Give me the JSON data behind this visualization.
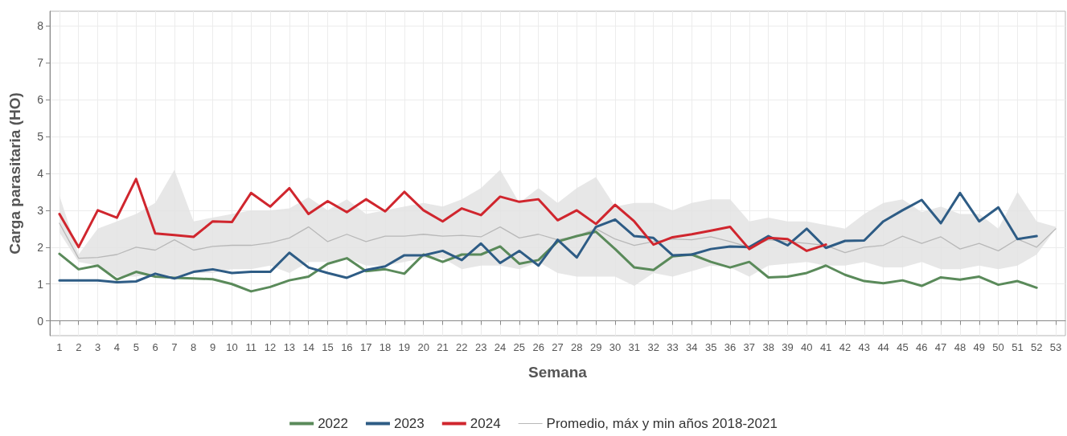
{
  "chart_data": {
    "type": "line",
    "xlabel": "Semana",
    "ylabel": "Carga parasitaria (HO)",
    "x": [
      1,
      2,
      3,
      4,
      5,
      6,
      7,
      8,
      9,
      10,
      11,
      12,
      13,
      14,
      15,
      16,
      17,
      18,
      19,
      20,
      21,
      22,
      23,
      24,
      25,
      26,
      27,
      28,
      29,
      30,
      31,
      32,
      33,
      34,
      35,
      36,
      37,
      38,
      39,
      40,
      41,
      42,
      43,
      44,
      45,
      46,
      47,
      48,
      49,
      50,
      51,
      52,
      53
    ],
    "series": [
      {
        "name": "2022",
        "color": "#5a8a5a",
        "values": [
          1.82,
          1.4,
          1.5,
          1.12,
          1.33,
          1.2,
          1.17,
          1.15,
          1.13,
          1.0,
          0.8,
          0.92,
          1.1,
          1.2,
          1.55,
          1.7,
          1.35,
          1.4,
          1.28,
          1.8,
          1.6,
          1.8,
          1.8,
          2.02,
          1.55,
          1.65,
          2.15,
          2.3,
          2.42,
          1.95,
          1.45,
          1.38,
          1.75,
          1.8,
          1.6,
          1.45,
          1.6,
          1.18,
          1.2,
          1.3,
          1.5,
          1.25,
          1.08,
          1.02,
          1.1,
          0.95,
          1.18,
          1.12,
          1.2,
          0.98,
          1.08,
          0.9,
          null
        ]
      },
      {
        "name": "2023",
        "color": "#2e5c85",
        "values": [
          1.1,
          1.1,
          1.1,
          1.05,
          1.07,
          1.28,
          1.15,
          1.33,
          1.4,
          1.3,
          1.33,
          1.33,
          1.85,
          1.45,
          1.3,
          1.17,
          1.38,
          1.48,
          1.78,
          1.78,
          1.9,
          1.65,
          2.1,
          1.57,
          1.9,
          1.5,
          2.2,
          1.72,
          2.55,
          2.75,
          2.3,
          2.25,
          1.78,
          1.8,
          1.95,
          2.02,
          2.0,
          2.3,
          2.05,
          2.5,
          1.98,
          2.17,
          2.18,
          2.7,
          3.0,
          3.28,
          2.65,
          3.47,
          2.7,
          3.08,
          2.22,
          2.3,
          null
        ]
      },
      {
        "name": "2024",
        "color": "#d0262e",
        "values": [
          2.9,
          2.0,
          3.0,
          2.8,
          3.85,
          2.37,
          2.33,
          2.28,
          2.7,
          2.68,
          3.47,
          3.1,
          3.6,
          2.9,
          3.25,
          2.95,
          3.3,
          2.97,
          3.5,
          3.0,
          2.7,
          3.05,
          2.87,
          3.37,
          3.23,
          3.3,
          2.73,
          3.0,
          2.63,
          3.15,
          2.7,
          2.07,
          2.27,
          2.35,
          2.45,
          2.55,
          1.95,
          2.25,
          2.22,
          1.9,
          2.07,
          null,
          null,
          null,
          null,
          null,
          null,
          null,
          null,
          null,
          null,
          null,
          null
        ]
      },
      {
        "name": "Promedio, máx y min años 2018-2021",
        "color": "#b8b8b8",
        "values": [
          2.65,
          1.7,
          1.72,
          1.8,
          2.0,
          1.92,
          2.2,
          1.92,
          2.02,
          2.05,
          2.05,
          2.12,
          2.25,
          2.55,
          2.15,
          2.35,
          2.15,
          2.3,
          2.3,
          2.35,
          2.3,
          2.32,
          2.28,
          2.55,
          2.25,
          2.35,
          2.2,
          2.3,
          2.5,
          2.22,
          2.05,
          2.15,
          2.22,
          2.2,
          2.28,
          2.15,
          2.0,
          2.2,
          2.15,
          2.1,
          2.05,
          1.85,
          2.0,
          2.05,
          2.3,
          2.1,
          2.28,
          1.95,
          2.1,
          1.9,
          2.22,
          2.0,
          2.5
        ],
        "lower": [
          2.4,
          1.6,
          1.5,
          1.2,
          1.2,
          1.3,
          1.2,
          1.3,
          1.3,
          1.4,
          1.4,
          1.5,
          1.3,
          1.6,
          1.6,
          1.7,
          1.5,
          1.5,
          1.6,
          1.7,
          1.7,
          1.4,
          1.5,
          1.5,
          1.4,
          1.6,
          1.3,
          1.2,
          1.2,
          1.2,
          0.95,
          1.3,
          1.2,
          1.35,
          1.5,
          1.45,
          1.2,
          1.5,
          1.55,
          1.6,
          1.5,
          1.5,
          1.6,
          1.45,
          1.45,
          1.6,
          1.4,
          1.4,
          1.5,
          1.4,
          1.5,
          1.8,
          2.5
        ],
        "upper": [
          3.4,
          1.8,
          2.5,
          2.7,
          2.9,
          3.2,
          4.1,
          2.7,
          2.8,
          2.9,
          3.0,
          3.0,
          3.05,
          3.35,
          3.0,
          3.3,
          2.9,
          3.0,
          3.1,
          3.2,
          3.1,
          3.3,
          3.6,
          4.1,
          3.2,
          3.6,
          3.2,
          3.6,
          3.9,
          3.1,
          3.2,
          3.2,
          3.0,
          3.2,
          3.3,
          3.3,
          2.7,
          2.8,
          2.7,
          2.7,
          2.6,
          2.5,
          2.9,
          3.2,
          3.3,
          2.95,
          3.1,
          2.9,
          2.9,
          2.5,
          3.5,
          2.7,
          2.55
        ]
      }
    ],
    "xlim": [
      0.5,
      53.5
    ],
    "xticks": [
      1,
      2,
      3,
      4,
      5,
      6,
      7,
      8,
      9,
      10,
      11,
      12,
      13,
      14,
      15,
      16,
      17,
      18,
      19,
      20,
      21,
      22,
      23,
      24,
      25,
      26,
      27,
      28,
      29,
      30,
      31,
      32,
      33,
      34,
      35,
      36,
      37,
      38,
      39,
      40,
      41,
      42,
      43,
      44,
      45,
      46,
      47,
      48,
      49,
      50,
      51,
      52,
      53
    ],
    "ylim": [
      -0.4,
      8.4
    ],
    "yticks": [
      0,
      1,
      2,
      3,
      4,
      5,
      6,
      7,
      8
    ],
    "grid": true,
    "legend": "bottom",
    "marker": "none",
    "line_style": "solid"
  }
}
